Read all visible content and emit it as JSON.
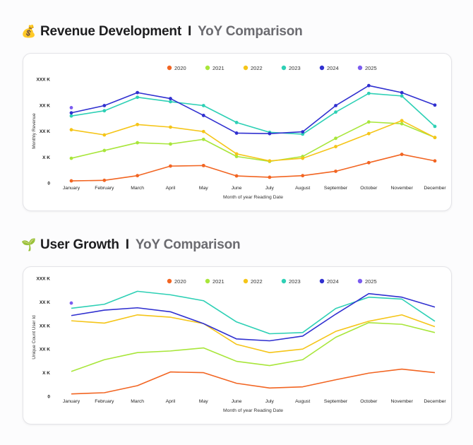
{
  "charts": [
    {
      "heading": {
        "emoji": "💰",
        "title": "Revenue Development",
        "separator": "I",
        "subtitle": "YoY Comparison"
      }
    },
    {
      "heading": {
        "emoji": "🌱",
        "title": "User Growth",
        "separator": "I",
        "subtitle": "YoY Comparison"
      }
    }
  ],
  "colors": {
    "2020": "#f26522",
    "2021": "#a8e63a",
    "2022": "#f5c518",
    "2023": "#2ed0b5",
    "2024": "#3030d0",
    "2025": "#7b5cf0"
  },
  "chart_data": [
    {
      "type": "line",
      "markers": true,
      "title": "Revenue Development | YoY Comparison",
      "xlabel": "Month of year Reading Date",
      "ylabel": "Monthly Revenue",
      "ylim": [
        0,
        4
      ],
      "yticks": [
        {
          "value": 0,
          "label": "0"
        },
        {
          "value": 1,
          "label": "X K"
        },
        {
          "value": 2,
          "label": "XX K"
        },
        {
          "value": 3,
          "label": "XX K"
        },
        {
          "value": 4,
          "label": "XXX K"
        }
      ],
      "categories": [
        "January",
        "February",
        "March",
        "April",
        "May",
        "June",
        "July",
        "August",
        "September",
        "October",
        "November",
        "December"
      ],
      "legend_position": "top-center",
      "series": [
        {
          "name": "2020",
          "values": [
            0.08,
            0.1,
            0.28,
            0.65,
            0.67,
            0.27,
            0.22,
            0.28,
            0.45,
            0.78,
            1.1,
            0.85
          ]
        },
        {
          "name": "2021",
          "values": [
            0.95,
            1.25,
            1.55,
            1.5,
            1.68,
            1.02,
            0.83,
            1.02,
            1.72,
            2.35,
            2.28,
            1.75
          ]
        },
        {
          "name": "2022",
          "values": [
            2.05,
            1.85,
            2.25,
            2.15,
            1.98,
            1.12,
            0.85,
            0.95,
            1.4,
            1.9,
            2.4,
            1.75
          ]
        },
        {
          "name": "2023",
          "values": [
            2.58,
            2.78,
            3.3,
            3.13,
            2.98,
            2.33,
            1.95,
            1.88,
            2.73,
            3.45,
            3.35,
            2.18
          ]
        },
        {
          "name": "2024",
          "values": [
            2.7,
            2.98,
            3.48,
            3.25,
            2.6,
            1.92,
            1.9,
            1.97,
            2.98,
            3.75,
            3.48,
            3.0
          ]
        },
        {
          "name": "2025",
          "values": [
            2.9,
            null,
            null,
            null,
            null,
            null,
            null,
            null,
            null,
            null,
            null,
            null
          ]
        }
      ]
    },
    {
      "type": "line",
      "markers": false,
      "title": "User Growth | YoY Comparison",
      "xlabel": "Month of year Reading Date",
      "ylabel": "Unique Count User Id",
      "ylim": [
        0,
        5
      ],
      "yticks": [
        {
          "value": 0,
          "label": "0"
        },
        {
          "value": 1,
          "label": "X K"
        },
        {
          "value": 2,
          "label": "XX K"
        },
        {
          "value": 3,
          "label": "XX K"
        },
        {
          "value": 4,
          "label": "XX K"
        },
        {
          "value": 5,
          "label": "XXX K"
        }
      ],
      "categories": [
        "January",
        "February",
        "March",
        "April",
        "May",
        "June",
        "July",
        "August",
        "September",
        "October",
        "November",
        "December"
      ],
      "legend_position": "top-center",
      "series": [
        {
          "name": "2020",
          "values": [
            0.1,
            0.15,
            0.45,
            1.03,
            1.0,
            0.55,
            0.35,
            0.4,
            0.7,
            0.98,
            1.15,
            1.0
          ]
        },
        {
          "name": "2021",
          "values": [
            1.05,
            1.55,
            1.85,
            1.92,
            2.05,
            1.48,
            1.3,
            1.55,
            2.5,
            3.12,
            3.05,
            2.7
          ]
        },
        {
          "name": "2022",
          "values": [
            3.2,
            3.1,
            3.45,
            3.35,
            3.08,
            2.2,
            1.85,
            2.0,
            2.75,
            3.18,
            3.45,
            2.95
          ]
        },
        {
          "name": "2023",
          "values": [
            3.73,
            3.9,
            4.45,
            4.3,
            4.05,
            3.15,
            2.65,
            2.7,
            3.72,
            4.2,
            4.12,
            3.18
          ]
        },
        {
          "name": "2024",
          "values": [
            3.42,
            3.65,
            3.75,
            3.58,
            3.08,
            2.43,
            2.35,
            2.55,
            3.48,
            4.35,
            4.2,
            3.78
          ]
        },
        {
          "name": "2025",
          "values": [
            3.95,
            null,
            null,
            null,
            null,
            null,
            null,
            null,
            null,
            null,
            null,
            null
          ]
        }
      ]
    }
  ]
}
